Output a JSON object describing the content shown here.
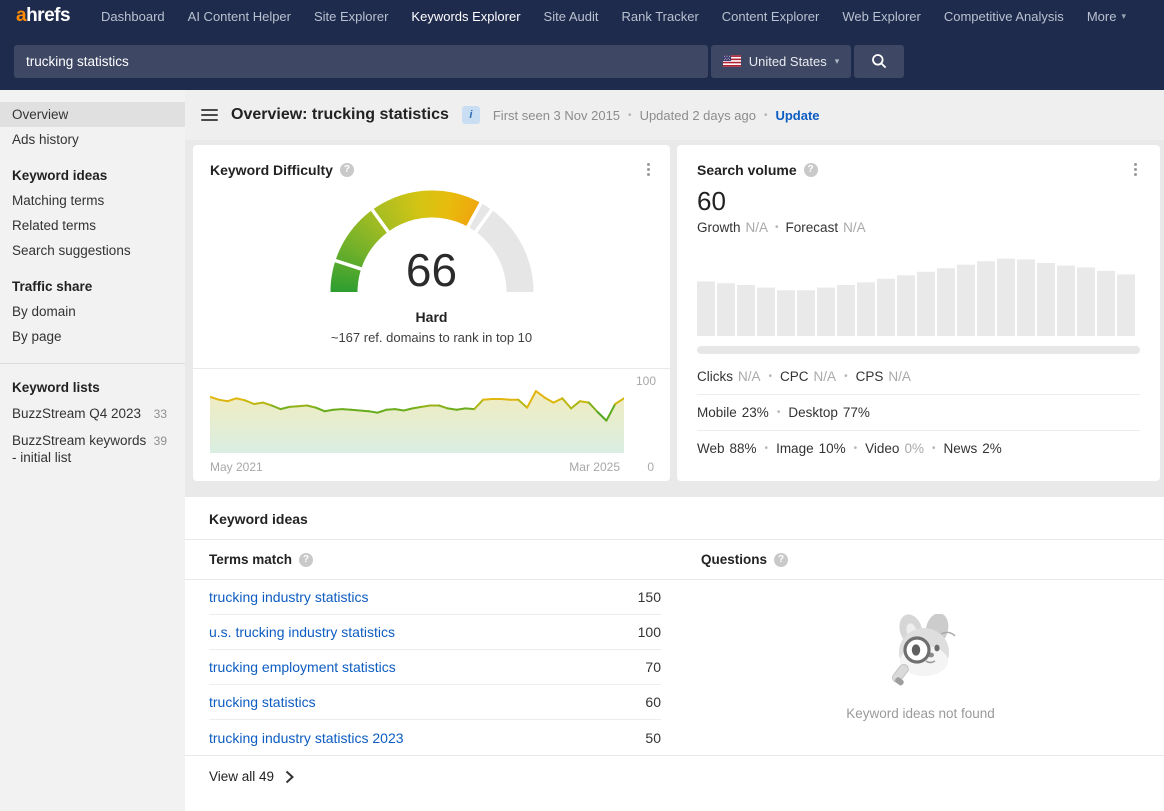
{
  "ui": {
    "dot": "•",
    "caret": "▾",
    "help_glyph": "?"
  },
  "nav": {
    "logo_a": "a",
    "logo_rest": "hrefs",
    "items": [
      "Dashboard",
      "AI Content Helper",
      "Site Explorer",
      "Keywords Explorer",
      "Site Audit",
      "Rank Tracker",
      "Content Explorer",
      "Web Explorer",
      "Competitive Analysis",
      "More"
    ],
    "active_item": "Keywords Explorer"
  },
  "search": {
    "query": "trucking statistics",
    "country": "United States"
  },
  "sidebar": {
    "top_items": [
      {
        "label": "Overview"
      },
      {
        "label": "Ads history"
      }
    ],
    "groups": [
      {
        "title": "Keyword ideas",
        "items": [
          "Matching terms",
          "Related terms",
          "Search suggestions"
        ]
      },
      {
        "title": "Traffic share",
        "items": [
          "By domain",
          "By page"
        ]
      }
    ],
    "keyword_lists": {
      "title": "Keyword lists",
      "items": [
        {
          "label": "BuzzStream Q4 2023",
          "count": "33"
        },
        {
          "label": "BuzzStream keywords - initial list",
          "count": "39"
        }
      ]
    }
  },
  "header": {
    "title": "Overview: trucking statistics",
    "badge_glyph": "i",
    "first_seen": "First seen 3 Nov 2015",
    "updated": "Updated 2 days ago",
    "update_link": "Update"
  },
  "sv_card": {
    "title": "Search volume",
    "value": "60",
    "growth": {
      "label": "Growth",
      "value": "N/A"
    },
    "forecast": {
      "label": "Forecast",
      "value": "N/A"
    },
    "row1": [
      {
        "label": "Clicks",
        "value": "N/A"
      },
      {
        "label": "CPC",
        "value": "N/A"
      },
      {
        "label": "CPS",
        "value": "N/A"
      }
    ],
    "row2": [
      {
        "label": "Mobile",
        "value": "23%"
      },
      {
        "label": "Desktop",
        "value": "77%"
      }
    ],
    "row3": [
      {
        "label": "Web",
        "value": "88%"
      },
      {
        "label": "Image",
        "value": "10%"
      },
      {
        "label": "Video",
        "value": "0%"
      },
      {
        "label": "News",
        "value": "2%"
      }
    ]
  },
  "ideas": {
    "title": "Keyword ideas",
    "terms": {
      "header": "Terms match",
      "rows": [
        {
          "keyword": "trucking industry statistics",
          "volume": "150"
        },
        {
          "keyword": "u.s. trucking industry statistics",
          "volume": "100"
        },
        {
          "keyword": "trucking employment statistics",
          "volume": "70"
        },
        {
          "keyword": "trucking statistics",
          "volume": "60"
        },
        {
          "keyword": "trucking industry statistics 2023",
          "volume": "50"
        }
      ],
      "view_all": "View all 49"
    },
    "questions": {
      "header": "Questions",
      "empty_text": "Keyword ideas not found"
    }
  },
  "chart_data": [
    {
      "type": "gauge",
      "title": "Keyword Difficulty",
      "value": 66,
      "min": 0,
      "max": 100,
      "label": "Hard",
      "caption": "~167 ref. domains to rank in top 10",
      "segment_boundaries": [
        10,
        30,
        70
      ],
      "color_stops": [
        [
          0,
          "#2f9e30"
        ],
        [
          15,
          "#6fb02b"
        ],
        [
          30,
          "#a6bd22"
        ],
        [
          45,
          "#d4c414"
        ],
        [
          56,
          "#e8bb0e"
        ],
        [
          66,
          "#f0a50c"
        ]
      ],
      "empty_color": "#e6e6e6"
    },
    {
      "type": "area",
      "title": "Keyword Difficulty history",
      "x_start": "May 2021",
      "x_end": "Mar 2025",
      "ylim": [
        0,
        100
      ],
      "values": [
        78,
        74,
        72,
        76,
        73,
        68,
        70,
        66,
        61,
        64,
        65,
        66,
        63,
        58,
        60,
        61,
        60,
        59,
        58,
        56,
        60,
        61,
        59,
        62,
        64,
        66,
        66,
        62,
        60,
        62,
        61,
        74,
        75,
        75,
        74,
        74,
        63,
        86,
        77,
        70,
        76,
        62,
        72,
        70,
        57,
        45,
        68,
        76
      ],
      "line_color_stops": [
        [
          50,
          "#4fa51e"
        ],
        [
          62,
          "#6fae1c"
        ],
        [
          68,
          "#b4b713"
        ],
        [
          74,
          "#e0b60e"
        ],
        [
          90,
          "#e9b60b"
        ]
      ],
      "fill_gradient": [
        "#efe9b4",
        "#d5ecdf"
      ]
    },
    {
      "type": "bar",
      "title": "Search volume by month",
      "ylim": [
        0,
        100
      ],
      "values": [
        62,
        60,
        58,
        55,
        52,
        52,
        55,
        58,
        61,
        65,
        69,
        73,
        77,
        81,
        85,
        88,
        87,
        83,
        80,
        78,
        74,
        70
      ],
      "bar_color": "#e9e9e9"
    }
  ]
}
